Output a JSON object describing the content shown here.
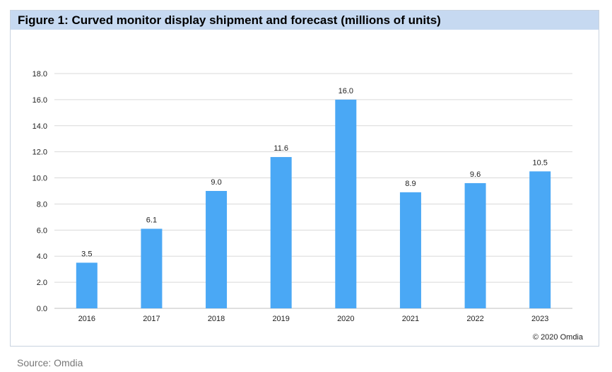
{
  "figure": {
    "title": "Figure 1: Curved monitor display shipment and forecast (millions of units)",
    "copyright": "© 2020 Omdia"
  },
  "source": "Source: Omdia",
  "colors": {
    "bar": "#4aa8f5",
    "header_bg": "#c6d9f1",
    "grid": "#d9d9d9"
  },
  "chart_data": {
    "type": "bar",
    "title": "Figure 1: Curved monitor display shipment and forecast (millions of units)",
    "xlabel": "",
    "ylabel": "",
    "categories": [
      "2016",
      "2017",
      "2018",
      "2019",
      "2020",
      "2021",
      "2022",
      "2023"
    ],
    "values": [
      3.5,
      6.1,
      9.0,
      11.6,
      16.0,
      8.9,
      9.6,
      10.5
    ],
    "data_labels": [
      "3.5",
      "6.1",
      "9.0",
      "11.6",
      "16.0",
      "8.9",
      "9.6",
      "10.5"
    ],
    "ylim": [
      0,
      18
    ],
    "yticks": [
      0,
      2,
      4,
      6,
      8,
      10,
      12,
      14,
      16,
      18
    ],
    "ytick_labels": [
      "0.0",
      "2.0",
      "4.0",
      "6.0",
      "8.0",
      "10.0",
      "12.0",
      "14.0",
      "16.0",
      "18.0"
    ],
    "grid": true,
    "legend": "none"
  }
}
